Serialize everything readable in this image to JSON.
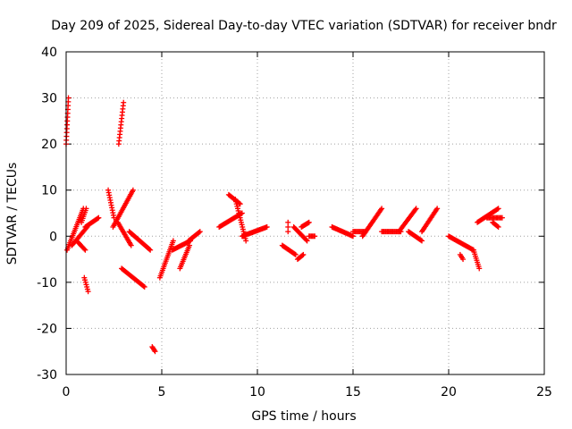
{
  "chart_data": {
    "type": "scatter",
    "title": "Day 209 of 2025, Sidereal Day-to-day VTEC variation (SDTVAR) for receiver bndr",
    "xlabel": "GPS time / hours",
    "ylabel": "SDTVAR / TECUs",
    "xlim": [
      0,
      25
    ],
    "ylim": [
      -30,
      40
    ],
    "xticks": [
      0,
      5,
      10,
      15,
      20,
      25
    ],
    "yticks": [
      -30,
      -20,
      -10,
      0,
      10,
      20,
      30,
      40
    ],
    "grid": true,
    "marker": "+",
    "color": "#ff0000",
    "tracks": [
      {
        "x0": 0.0,
        "y0": 20,
        "x1": 0.12,
        "y1": 30
      },
      {
        "x0": 0.05,
        "y0": -3,
        "x1": 0.9,
        "y1": 6
      },
      {
        "x0": 0.3,
        "y0": -2,
        "x1": 1.1,
        "y1": 2
      },
      {
        "x0": 0.55,
        "y0": -1,
        "x1": 1.0,
        "y1": -3
      },
      {
        "x0": 0.8,
        "y0": 3,
        "x1": 1.05,
        "y1": 6
      },
      {
        "x0": 1.0,
        "y0": 2,
        "x1": 1.7,
        "y1": 4
      },
      {
        "x0": 0.95,
        "y0": -9,
        "x1": 1.15,
        "y1": -12
      },
      {
        "x0": 2.2,
        "y0": 10,
        "x1": 2.5,
        "y1": 4
      },
      {
        "x0": 2.45,
        "y0": 2,
        "x1": 3.5,
        "y1": 10
      },
      {
        "x0": 2.75,
        "y0": 20,
        "x1": 3.0,
        "y1": 29
      },
      {
        "x0": 2.7,
        "y0": 3,
        "x1": 3.4,
        "y1": -2
      },
      {
        "x0": 3.3,
        "y0": 1,
        "x1": 4.4,
        "y1": -3
      },
      {
        "x0": 2.9,
        "y0": -7,
        "x1": 4.1,
        "y1": -11
      },
      {
        "x0": 4.5,
        "y0": -24,
        "x1": 4.65,
        "y1": -25
      },
      {
        "x0": 4.9,
        "y0": -9,
        "x1": 5.6,
        "y1": -1
      },
      {
        "x0": 5.55,
        "y0": -3,
        "x1": 6.5,
        "y1": -1
      },
      {
        "x0": 5.95,
        "y0": -7,
        "x1": 6.45,
        "y1": -2
      },
      {
        "x0": 6.4,
        "y0": -1,
        "x1": 7.0,
        "y1": 1
      },
      {
        "x0": 8.0,
        "y0": 2,
        "x1": 9.2,
        "y1": 5
      },
      {
        "x0": 8.5,
        "y0": 9,
        "x1": 9.1,
        "y1": 7
      },
      {
        "x0": 8.85,
        "y0": 8,
        "x1": 9.4,
        "y1": -1
      },
      {
        "x0": 9.2,
        "y0": 0,
        "x1": 10.5,
        "y1": 2
      },
      {
        "x0": 11.3,
        "y0": -2,
        "x1": 12.0,
        "y1": -4
      },
      {
        "x0": 11.6,
        "y0": 1,
        "x1": 11.6,
        "y1": 3
      },
      {
        "x0": 11.9,
        "y0": 2,
        "x1": 12.6,
        "y1": -1
      },
      {
        "x0": 12.1,
        "y0": -5,
        "x1": 12.4,
        "y1": -4
      },
      {
        "x0": 12.3,
        "y0": 2,
        "x1": 12.7,
        "y1": 3
      },
      {
        "x0": 12.7,
        "y0": 0,
        "x1": 13.0,
        "y1": 0
      },
      {
        "x0": 13.9,
        "y0": 2,
        "x1": 15.0,
        "y1": 0
      },
      {
        "x0": 15.0,
        "y0": 1,
        "x1": 15.6,
        "y1": 1
      },
      {
        "x0": 15.5,
        "y0": 0,
        "x1": 16.5,
        "y1": 6
      },
      {
        "x0": 16.5,
        "y0": 1,
        "x1": 17.5,
        "y1": 1
      },
      {
        "x0": 17.4,
        "y0": 1,
        "x1": 18.3,
        "y1": 6
      },
      {
        "x0": 17.9,
        "y0": 1,
        "x1": 18.6,
        "y1": -1
      },
      {
        "x0": 18.6,
        "y0": 1,
        "x1": 19.4,
        "y1": 6
      },
      {
        "x0": 20.0,
        "y0": 0,
        "x1": 21.3,
        "y1": -3
      },
      {
        "x0": 20.6,
        "y0": -4,
        "x1": 20.75,
        "y1": -5
      },
      {
        "x0": 21.3,
        "y0": -3,
        "x1": 21.6,
        "y1": -7
      },
      {
        "x0": 21.5,
        "y0": 3,
        "x1": 22.6,
        "y1": 6
      },
      {
        "x0": 22.0,
        "y0": 4,
        "x1": 22.8,
        "y1": 4
      },
      {
        "x0": 22.3,
        "y0": 3,
        "x1": 22.6,
        "y1": 2
      }
    ]
  }
}
